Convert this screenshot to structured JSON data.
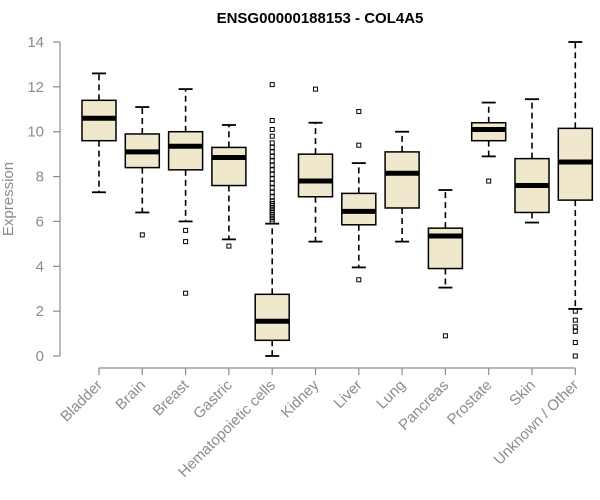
{
  "chart_data": {
    "type": "boxplot",
    "title": "ENSG00000188153 - COL4A5",
    "xlabel": "",
    "ylabel": "Expression",
    "ylim": [
      0,
      14
    ],
    "yticks": [
      0,
      2,
      4,
      6,
      8,
      10,
      12,
      14
    ],
    "grid": false,
    "legend": "none",
    "box_fill": "#f0e8cc",
    "median_color": "#000000",
    "categories": [
      "Bladder",
      "Brain",
      "Breast",
      "Gastric",
      "Hematopoietic cells",
      "Kidney",
      "Liver",
      "Lung",
      "Pancreas",
      "Prostate",
      "Skin",
      "Unknown / Other"
    ],
    "boxes": [
      {
        "category": "Bladder",
        "whisker_low": 7.3,
        "q1": 9.6,
        "median": 10.6,
        "q3": 11.4,
        "whisker_high": 12.6,
        "outliers": []
      },
      {
        "category": "Brain",
        "whisker_low": 6.4,
        "q1": 8.4,
        "median": 9.1,
        "q3": 9.9,
        "whisker_high": 11.1,
        "outliers": [
          5.4
        ]
      },
      {
        "category": "Breast",
        "whisker_low": 6.0,
        "q1": 8.3,
        "median": 9.35,
        "q3": 10.0,
        "whisker_high": 11.9,
        "outliers": [
          5.6,
          5.1,
          2.8
        ]
      },
      {
        "category": "Gastric",
        "whisker_low": 5.2,
        "q1": 7.6,
        "median": 8.85,
        "q3": 9.3,
        "whisker_high": 10.3,
        "outliers": [
          4.9
        ]
      },
      {
        "category": "Hematopoietic cells",
        "whisker_low": 0.0,
        "q1": 0.7,
        "median": 1.55,
        "q3": 2.75,
        "whisker_high": 5.9,
        "outliers": [
          12.1,
          10.5,
          10.1,
          9.8,
          9.5,
          9.3,
          9.1,
          8.9,
          8.7,
          8.5,
          8.3,
          8.1,
          7.9,
          7.7,
          7.5,
          7.3,
          7.1,
          6.9,
          6.8,
          6.7,
          6.6,
          6.5,
          6.4,
          6.3,
          6.2,
          6.1,
          6.0
        ]
      },
      {
        "category": "Kidney",
        "whisker_low": 5.1,
        "q1": 7.1,
        "median": 7.8,
        "q3": 9.0,
        "whisker_high": 10.4,
        "outliers": [
          11.9
        ]
      },
      {
        "category": "Liver",
        "whisker_low": 3.95,
        "q1": 5.85,
        "median": 6.45,
        "q3": 7.25,
        "whisker_high": 8.6,
        "outliers": [
          10.9,
          9.4,
          3.4
        ]
      },
      {
        "category": "Lung",
        "whisker_low": 5.1,
        "q1": 6.6,
        "median": 8.15,
        "q3": 9.1,
        "whisker_high": 10.0,
        "outliers": []
      },
      {
        "category": "Pancreas",
        "whisker_low": 3.05,
        "q1": 3.9,
        "median": 5.35,
        "q3": 5.7,
        "whisker_high": 7.4,
        "outliers": [
          0.9
        ]
      },
      {
        "category": "Prostate",
        "whisker_low": 8.9,
        "q1": 9.6,
        "median": 10.1,
        "q3": 10.4,
        "whisker_high": 11.3,
        "outliers": [
          7.8
        ]
      },
      {
        "category": "Skin",
        "whisker_low": 5.95,
        "q1": 6.4,
        "median": 7.6,
        "q3": 8.8,
        "whisker_high": 11.45,
        "outliers": []
      },
      {
        "category": "Unknown / Other",
        "whisker_low": 2.1,
        "q1": 6.95,
        "median": 8.65,
        "q3": 10.15,
        "whisker_high": 14.0,
        "outliers": [
          2.0,
          1.6,
          1.3,
          1.1,
          0.6,
          0.0
        ]
      }
    ]
  }
}
